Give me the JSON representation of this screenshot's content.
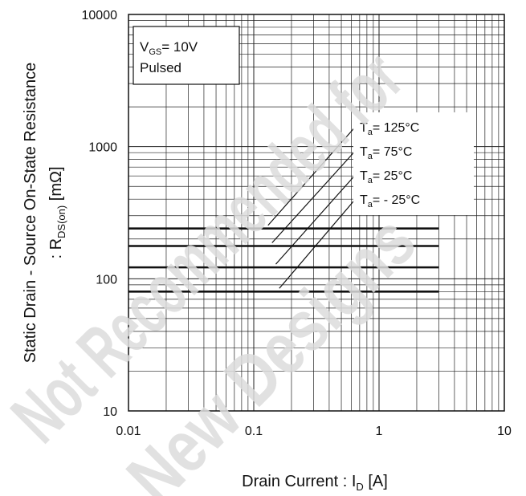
{
  "chart_data": {
    "type": "line",
    "x_scale": "log",
    "y_scale": "log",
    "xlim": [
      0.01,
      10
    ],
    "ylim": [
      10,
      10000
    ],
    "grid": true,
    "x_ticks": [
      "0.01",
      "0.1",
      "1",
      "10"
    ],
    "y_ticks": [
      "10",
      "100",
      "1000",
      "10000"
    ],
    "xlabel": "Drain Current : I_D [A]",
    "xlabel_main": "Drain Current : I",
    "xlabel_sub": "D",
    "xlabel_tail": " [A]",
    "ylabel_line1": "Static Drain - Source On-State Resistance",
    "ylabel_line2_main": ": R",
    "ylabel_line2_sub": "DS(on)",
    "ylabel_line2_tail": " [mΩ]",
    "conditions": {
      "vgs_main": "V",
      "vgs_sub": "GS",
      "vgs_tail": "= 10V",
      "mode": "Pulsed"
    },
    "series": [
      {
        "name": "Ta= 125°C",
        "label_main": "T",
        "label_sub": "a",
        "label_tail": "= 125°C",
        "x": [
          0.01,
          3
        ],
        "y": [
          240,
          240
        ],
        "label_anchor": [
          0.13,
          240
        ]
      },
      {
        "name": "Ta= 75°C",
        "label_main": "T",
        "label_sub": "a",
        "label_tail": "= 75°C",
        "x": [
          0.01,
          3
        ],
        "y": [
          177,
          177
        ],
        "label_anchor": [
          0.14,
          177
        ]
      },
      {
        "name": "Ta= 25°C",
        "label_main": "T",
        "label_sub": "a",
        "label_tail": "= 25°C",
        "x": [
          0.01,
          3
        ],
        "y": [
          122,
          122
        ],
        "label_anchor": [
          0.15,
          122
        ]
      },
      {
        "name": "Ta= - 25°C",
        "label_main": "T",
        "label_sub": "a",
        "label_tail": "= - 25°C",
        "x": [
          0.01,
          3
        ],
        "y": [
          80,
          80
        ],
        "label_anchor": [
          0.16,
          80
        ]
      }
    ]
  },
  "watermark": [
    "Not Recommended for",
    "New Designs"
  ]
}
